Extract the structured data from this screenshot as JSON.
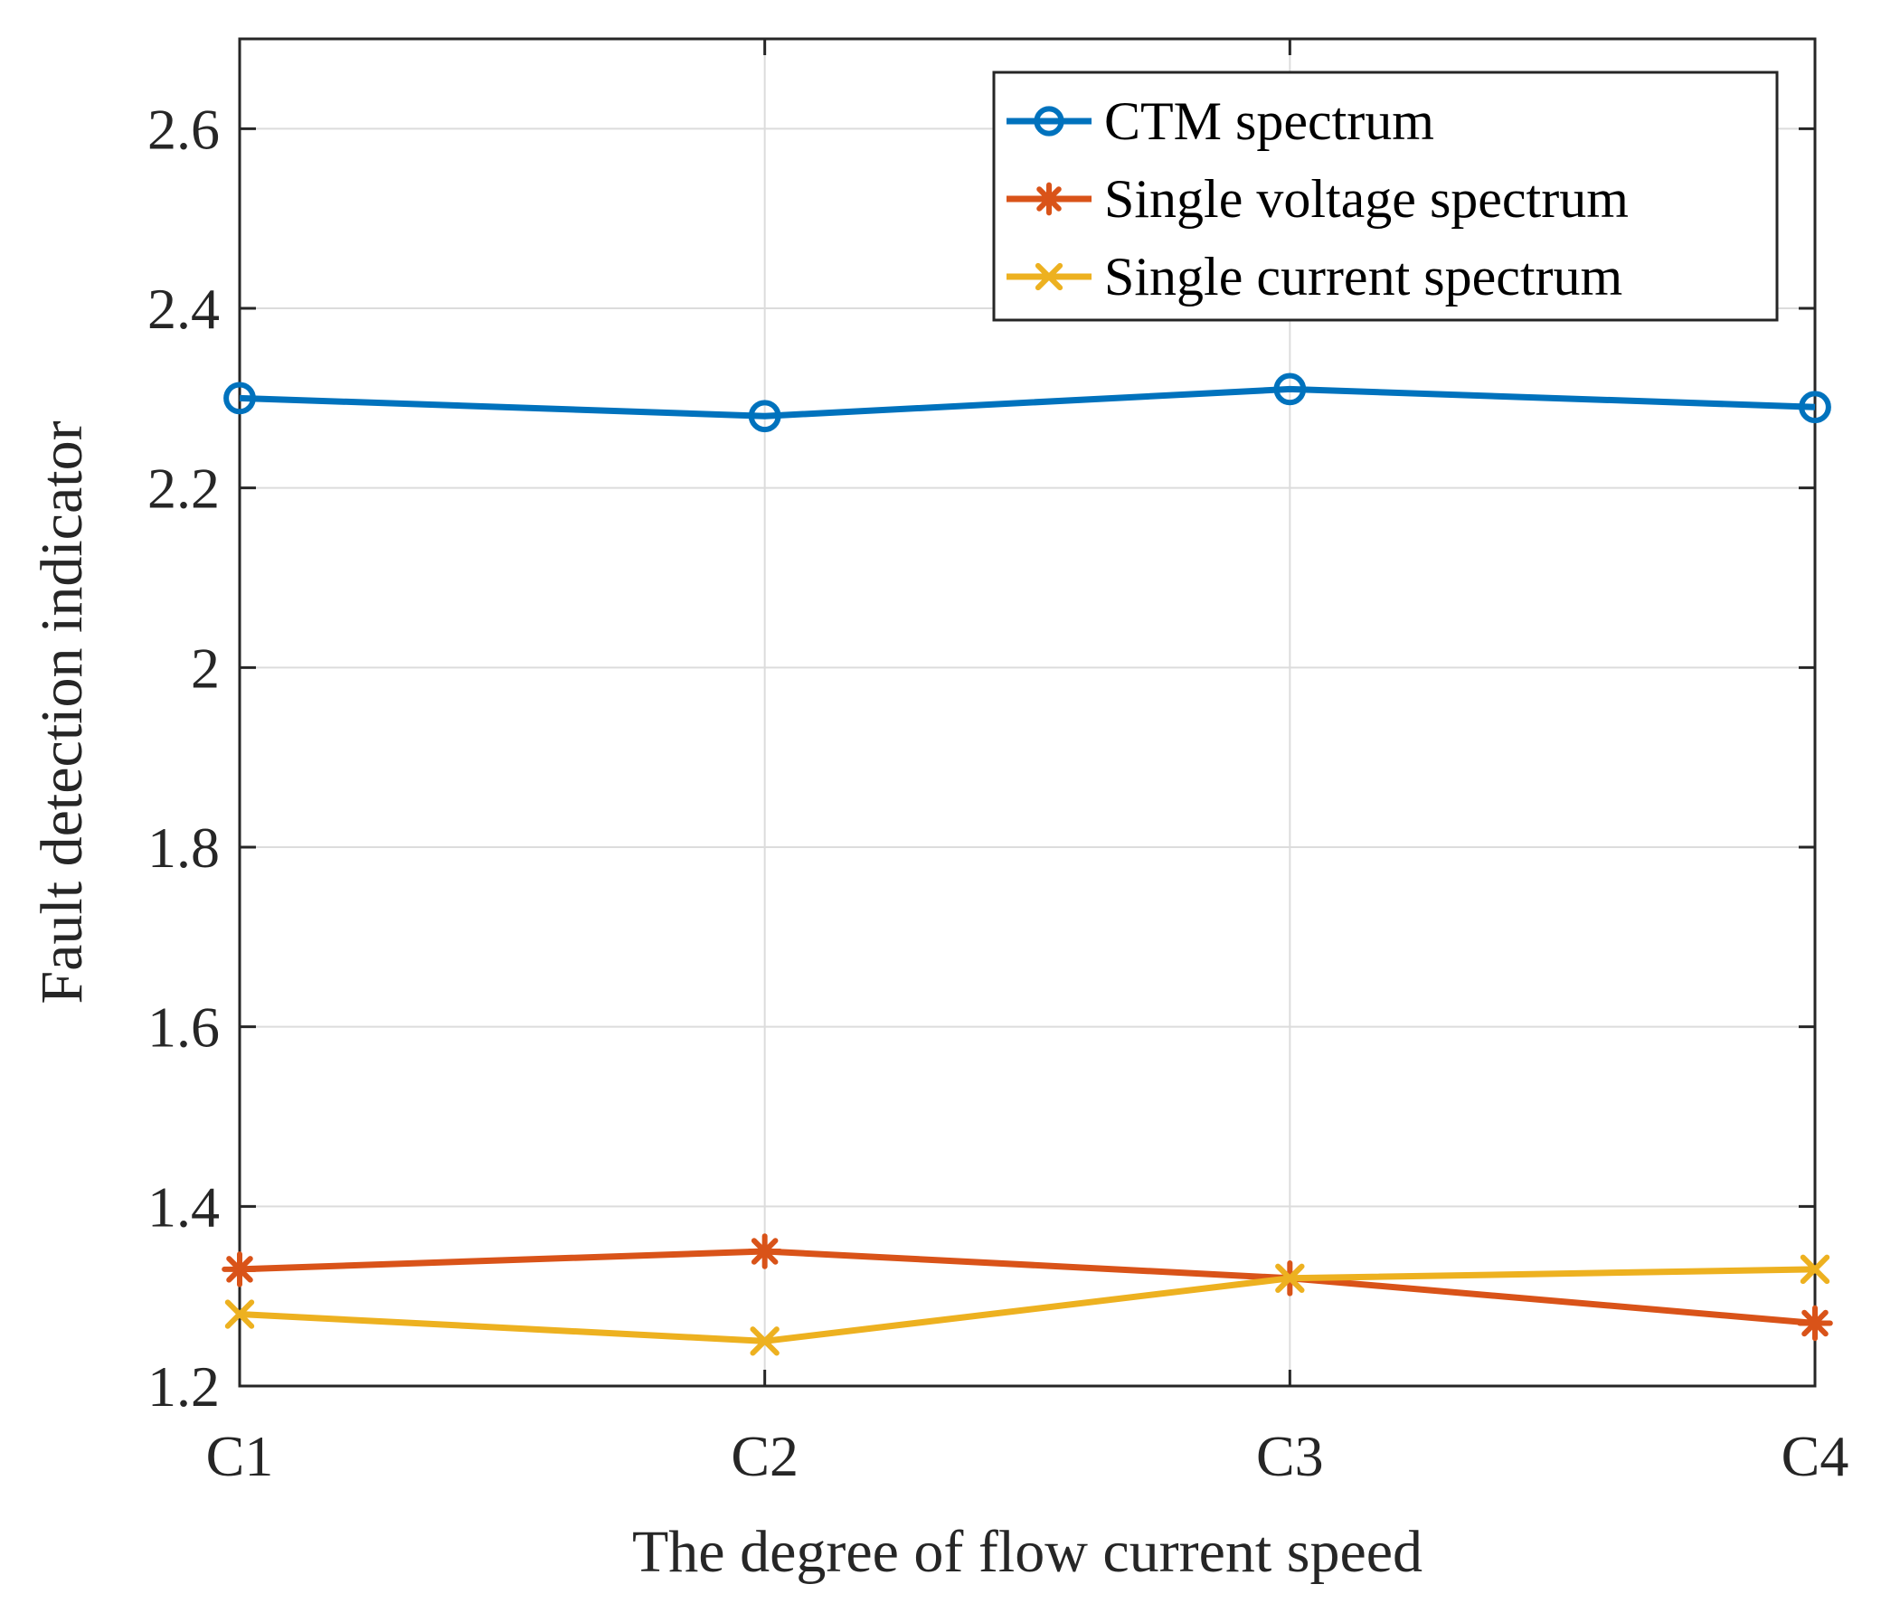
{
  "chart_data": {
    "type": "line",
    "categories": [
      "C1",
      "C2",
      "C3",
      "C4"
    ],
    "xlabel": "The degree of flow current speed",
    "ylabel": "Fault detection indicator",
    "ylim": [
      1.2,
      2.7
    ],
    "yticks": [
      1.2,
      1.4,
      1.6,
      1.8,
      2,
      2.2,
      2.4,
      2.6
    ],
    "ytick_labels": [
      "1.2",
      "1.4",
      "1.6",
      "1.8",
      "2",
      "2.2",
      "2.4",
      "2.6"
    ],
    "grid": true,
    "legend_position": "top-right",
    "series": [
      {
        "name": "CTM spectrum",
        "color": "#0072BD",
        "marker": "circle",
        "values": [
          2.3,
          2.28,
          2.31,
          2.29
        ]
      },
      {
        "name": "Single voltage spectrum",
        "color": "#D95319",
        "marker": "asterisk",
        "values": [
          1.33,
          1.35,
          1.32,
          1.27
        ]
      },
      {
        "name": "Single current spectrum",
        "color": "#EDB120",
        "marker": "x",
        "values": [
          1.28,
          1.25,
          1.32,
          1.33
        ]
      }
    ]
  }
}
